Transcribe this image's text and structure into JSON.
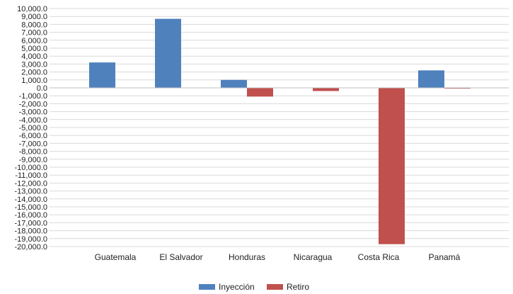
{
  "chart_data": {
    "type": "bar",
    "categories": [
      "Guatemala",
      "El Salvador",
      "Honduras",
      "Nicaragua",
      "Costa Rica",
      "Panamá"
    ],
    "series": [
      {
        "name": "Inyección",
        "color": "#4f81bd",
        "values": [
          3200,
          8700,
          1000,
          0,
          0,
          2200
        ]
      },
      {
        "name": "Retiro",
        "color": "#c0504d",
        "values": [
          0,
          0,
          -1100,
          -400,
          -19700,
          -100
        ]
      }
    ],
    "y_ticks": [
      "10,000.0",
      "9,000.0",
      "8,000.0",
      "7,000.0",
      "6,000.0",
      "5,000.0",
      "4,000.0",
      "3,000.0",
      "2,000.0",
      "1,000.0",
      "0.0",
      "-1,000.0",
      "-2,000.0",
      "-3,000.0",
      "-4,000.0",
      "-5,000.0",
      "-6,000.0",
      "-7,000.0",
      "-8,000.0",
      "-9,000.0",
      "-10,000.0",
      "-11,000.0",
      "-12,000.0",
      "-13,000.0",
      "-14,000.0",
      "-15,000.0",
      "-16,000.0",
      "-17,000.0",
      "-18,000.0",
      "-19,000.0",
      "-20,000.0"
    ],
    "ylim": [
      -20000,
      10000
    ],
    "y_step": 1000,
    "grid": true,
    "legend_position": "bottom"
  }
}
